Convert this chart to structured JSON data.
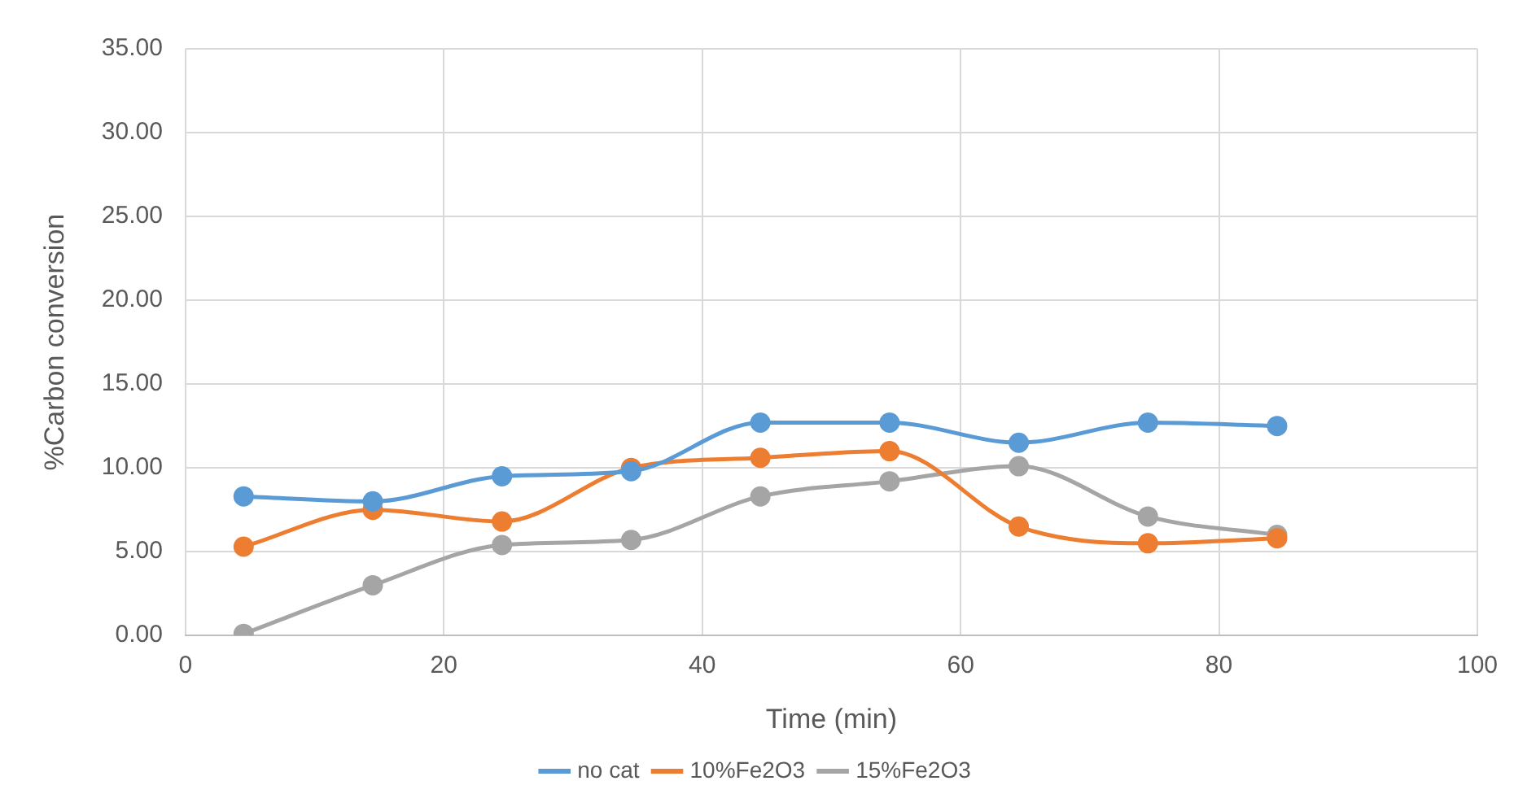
{
  "chart_data": {
    "type": "line",
    "xlabel": "Time (min)",
    "ylabel": "%Carbon conversion",
    "x": [
      4.5,
      14.5,
      24.5,
      34.5,
      44.5,
      54.5,
      64.5,
      74.5,
      84.5
    ],
    "series": [
      {
        "name": "no cat",
        "color": "#5b9bd5",
        "values": [
          8.3,
          8.0,
          9.5,
          9.8,
          12.7,
          12.7,
          11.5,
          12.7,
          12.5
        ]
      },
      {
        "name": "10%Fe2O3",
        "color": "#ed7d31",
        "values": [
          5.3,
          7.5,
          6.8,
          10.0,
          10.6,
          11.0,
          6.5,
          5.5,
          5.8
        ]
      },
      {
        "name": "15%Fe2O3",
        "color": "#a5a5a5",
        "values": [
          0.1,
          3.0,
          5.4,
          5.7,
          8.3,
          9.2,
          10.1,
          7.1,
          6.0
        ]
      }
    ],
    "xlim": [
      0,
      100
    ],
    "xticks": [
      0,
      20,
      40,
      60,
      80,
      100
    ],
    "ylim": [
      0,
      35
    ],
    "yticks": [
      {
        "value": 0,
        "label": "0.00"
      },
      {
        "value": 5,
        "label": "5.00"
      },
      {
        "value": 10,
        "label": "10.00"
      },
      {
        "value": 15,
        "label": "15.00"
      },
      {
        "value": 20,
        "label": "20.00"
      },
      {
        "value": 25,
        "label": "25.00"
      },
      {
        "value": 30,
        "label": "30.00"
      },
      {
        "value": 35,
        "label": "35.00"
      }
    ],
    "grid": true,
    "legend": "bottom",
    "marker": "circle",
    "line_style": "solid"
  }
}
